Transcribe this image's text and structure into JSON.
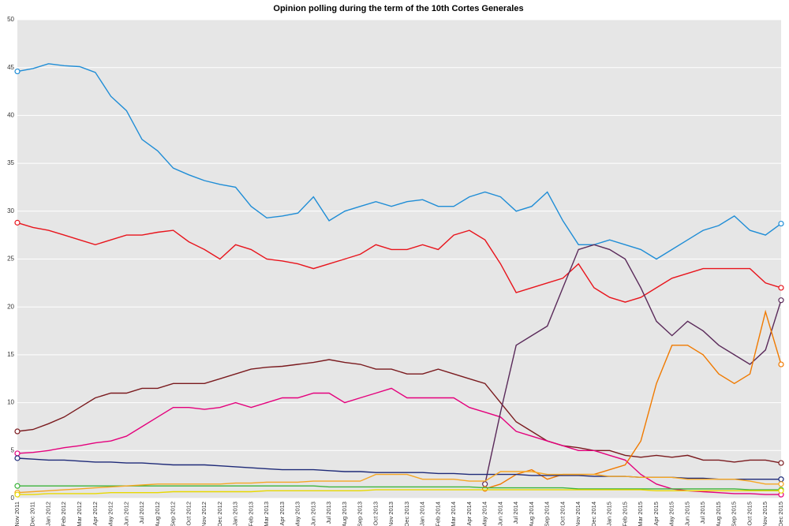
{
  "chart_data": {
    "type": "line",
    "title": "Opinion polling during the term of the 10th Cortes Generales",
    "categories": [
      "Nov 2011",
      "Dec 2011",
      "Jan 2012",
      "Feb 2012",
      "Mar 2012",
      "Apr 2012",
      "May 2012",
      "Jun 2012",
      "Jul 2012",
      "Aug 2012",
      "Sep 2012",
      "Oct 2012",
      "Nov 2012",
      "Dec 2012",
      "Jan 2013",
      "Feb 2013",
      "Mar 2013",
      "Apr 2013",
      "May 2013",
      "Jun 2013",
      "Jul 2013",
      "Aug 2013",
      "Sep 2013",
      "Oct 2013",
      "Nov 2013",
      "Dec 2013",
      "Jan 2014",
      "Feb 2014",
      "Mar 2014",
      "Apr 2014",
      "May 2014",
      "Jun 2014",
      "Jul 2014",
      "Aug 2014",
      "Sep 2014",
      "Oct 2014",
      "Nov 2014",
      "Dec 2014",
      "Jan 2015",
      "Feb 2015",
      "Mar 2015",
      "Apr 2015",
      "May 2015",
      "Jun 2015",
      "Jul 2015",
      "Aug 2015",
      "Sep 2015",
      "Oct 2015",
      "Nov 2015",
      "Dec 2015"
    ],
    "series": [
      {
        "color": "#1f8dd6",
        "values": [
          44.6,
          44.9,
          45.4,
          45.2,
          45.1,
          44.5,
          42,
          40.5,
          37.5,
          36.3,
          34.5,
          33.8,
          33.2,
          32.8,
          32.5,
          30.5,
          29.3,
          29.5,
          29.8,
          31.5,
          29,
          30,
          30.5,
          31,
          30.5,
          31,
          31.2,
          30.5,
          30.5,
          31.5,
          32,
          31.5,
          30,
          30.5,
          32,
          29,
          26.5,
          26.5,
          27,
          26.5,
          26,
          25,
          26,
          27,
          28,
          28.5,
          29.5,
          28,
          27.5,
          28.7
        ]
      },
      {
        "color": "#e8141c",
        "values": [
          28.8,
          28.3,
          28,
          27.5,
          27,
          26.5,
          27,
          27.5,
          27.5,
          27.8,
          28,
          26.8,
          26,
          25,
          26.5,
          26,
          25,
          24.8,
          24.5,
          24,
          24.5,
          25,
          25.5,
          26.5,
          26,
          26,
          26.5,
          26,
          27.5,
          28,
          27,
          24.5,
          21.5,
          22,
          22.5,
          23,
          24.5,
          22,
          21,
          20.5,
          21,
          22,
          23,
          23.5,
          24,
          24,
          24,
          24,
          22.5,
          22
        ]
      },
      {
        "color": "#7a1a1e",
        "values": [
          7,
          7.2,
          7.8,
          8.5,
          9.5,
          10.5,
          11,
          11,
          11.5,
          11.5,
          12,
          12,
          12,
          12.5,
          13,
          13.5,
          13.7,
          13.8,
          14,
          14.2,
          14.5,
          14.2,
          14,
          13.5,
          13.5,
          13,
          13,
          13.5,
          13,
          12.5,
          12,
          10,
          8,
          7,
          6,
          5.5,
          5.3,
          5,
          5,
          4.5,
          4.3,
          4.5,
          4.3,
          4.5,
          4,
          4,
          3.8,
          4,
          4,
          3.7
        ]
      },
      {
        "color": "#e4007c",
        "values": [
          4.7,
          4.8,
          5,
          5.3,
          5.5,
          5.8,
          6,
          6.5,
          7.5,
          8.5,
          9.5,
          9.5,
          9.3,
          9.5,
          10,
          9.5,
          10,
          10.5,
          10.5,
          11,
          11,
          10,
          10.5,
          11,
          11.5,
          10.5,
          10.5,
          10.5,
          10.5,
          9.5,
          9,
          8.5,
          7,
          6.5,
          6,
          5.5,
          5,
          5,
          4.5,
          4,
          2.5,
          1.5,
          1,
          0.8,
          0.7,
          0.6,
          0.5,
          0.5,
          0.4,
          0.4
        ]
      },
      {
        "color": "#5a2a5a",
        "values": [
          null,
          null,
          null,
          null,
          null,
          null,
          null,
          null,
          null,
          null,
          null,
          null,
          null,
          null,
          null,
          null,
          null,
          null,
          null,
          null,
          null,
          null,
          null,
          null,
          null,
          null,
          null,
          null,
          null,
          null,
          1.5,
          9,
          16,
          17,
          18,
          22,
          26,
          26.5,
          26,
          25,
          22,
          18.5,
          17,
          18.5,
          17.5,
          16,
          15,
          14,
          15.5,
          20.7
        ]
      },
      {
        "color": "#f07a00",
        "values": [
          null,
          null,
          null,
          null,
          null,
          null,
          null,
          null,
          null,
          null,
          null,
          null,
          null,
          null,
          null,
          null,
          null,
          null,
          null,
          null,
          null,
          null,
          null,
          null,
          null,
          null,
          null,
          null,
          null,
          null,
          1,
          1.5,
          2.5,
          3,
          2,
          2.5,
          2.5,
          2.5,
          3,
          3.5,
          6,
          12,
          16,
          16,
          15,
          13,
          12,
          13,
          19.5,
          14
        ]
      },
      {
        "color": "#1e2a78",
        "values": [
          4.2,
          4.1,
          4,
          4,
          3.9,
          3.8,
          3.8,
          3.7,
          3.7,
          3.6,
          3.5,
          3.5,
          3.5,
          3.4,
          3.3,
          3.2,
          3.1,
          3,
          3,
          3,
          2.9,
          2.8,
          2.8,
          2.7,
          2.7,
          2.7,
          2.7,
          2.6,
          2.6,
          2.5,
          2.5,
          2.5,
          2.5,
          2.4,
          2.4,
          2.4,
          2.4,
          2.3,
          2.3,
          2.3,
          2.2,
          2.2,
          2.2,
          2.1,
          2.1,
          2,
          2,
          2,
          2,
          2
        ]
      },
      {
        "color": "#3cb43c",
        "values": [
          1.3,
          1.3,
          1.3,
          1.3,
          1.3,
          1.3,
          1.3,
          1.3,
          1.3,
          1.3,
          1.3,
          1.3,
          1.3,
          1.3,
          1.3,
          1.3,
          1.3,
          1.3,
          1.3,
          1.3,
          1.2,
          1.2,
          1.2,
          1.2,
          1.2,
          1.2,
          1.2,
          1.2,
          1.2,
          1.2,
          1.1,
          1.1,
          1.1,
          1.1,
          1.1,
          1.1,
          1,
          1,
          1,
          1,
          1,
          1,
          1,
          1,
          1,
          1,
          1,
          0.9,
          0.9,
          0.9
        ]
      },
      {
        "color": "#f5a623",
        "values": [
          0.6,
          0.7,
          0.8,
          0.9,
          1,
          1.1,
          1.2,
          1.3,
          1.4,
          1.5,
          1.5,
          1.5,
          1.5,
          1.5,
          1.6,
          1.6,
          1.7,
          1.7,
          1.7,
          1.8,
          1.8,
          1.8,
          1.8,
          2.5,
          2.5,
          2.5,
          2,
          2,
          2,
          1.8,
          1.8,
          2.8,
          2.8,
          2.8,
          2.5,
          2.5,
          2.5,
          2.5,
          2.3,
          2.3,
          2.2,
          2.2,
          2.2,
          2,
          2,
          2,
          2,
          1.8,
          1.5,
          1.5
        ]
      },
      {
        "color": "#e8d800",
        "values": [
          0.4,
          0.4,
          0.5,
          0.5,
          0.5,
          0.5,
          0.6,
          0.6,
          0.6,
          0.6,
          0.7,
          0.7,
          0.7,
          0.7,
          0.7,
          0.7,
          0.8,
          0.8,
          0.8,
          0.8,
          0.8,
          0.8,
          0.8,
          0.9,
          0.9,
          0.9,
          0.9,
          0.9,
          0.9,
          0.9,
          0.9,
          0.9,
          0.9,
          0.9,
          0.9,
          0.9,
          0.9,
          0.9,
          0.9,
          0.9,
          0.9,
          0.8,
          0.8,
          0.8,
          0.8,
          0.8,
          0.8,
          0.8,
          0.8,
          0.8
        ]
      }
    ],
    "ylim": [
      0,
      50
    ],
    "yticks": [
      0,
      5,
      10,
      15,
      20,
      25,
      30,
      35,
      40,
      45,
      50
    ],
    "grid": true
  }
}
